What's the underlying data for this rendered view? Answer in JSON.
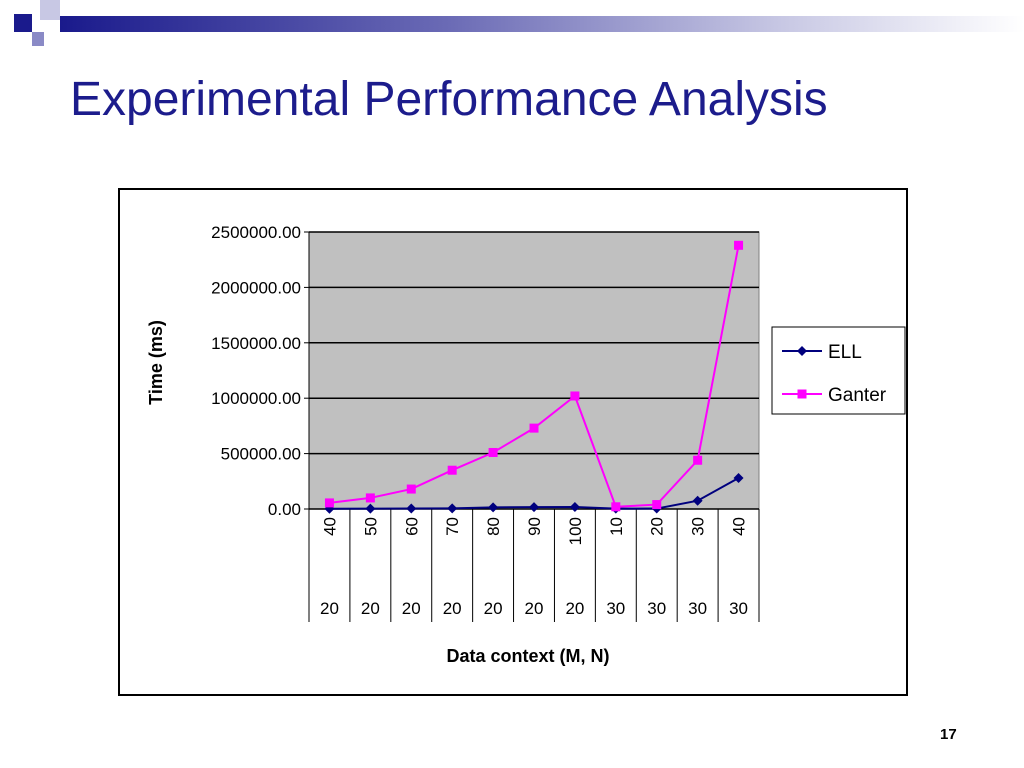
{
  "slide": {
    "title": "Experimental Performance Analysis",
    "page_number": "17"
  },
  "colors": {
    "title": "#1c1c8c",
    "deco_dark": "#1a1a8c",
    "deco_mid": "#6a6ab5",
    "deco_light": "#c8c8e4",
    "plot_bg": "#c0c0c0",
    "ell": "#00007e",
    "ganter": "#ff00ff"
  },
  "chart_data": {
    "type": "line",
    "title": "",
    "xlabel": "Data context (M, N)",
    "ylabel": "Time (ms)",
    "ylim": [
      0,
      2500000
    ],
    "y_ticks": [
      "0.00",
      "500000.00",
      "1000000.00",
      "1500000.00",
      "2000000.00",
      "2500000.00"
    ],
    "categories": [
      [
        "40",
        "20"
      ],
      [
        "50",
        "20"
      ],
      [
        "60",
        "20"
      ],
      [
        "70",
        "20"
      ],
      [
        "80",
        "20"
      ],
      [
        "90",
        "20"
      ],
      [
        "100",
        "20"
      ],
      [
        "10",
        "30"
      ],
      [
        "20",
        "30"
      ],
      [
        "30",
        "30"
      ],
      [
        "40",
        "30"
      ]
    ],
    "series": [
      {
        "name": "ELL",
        "color": "#00007e",
        "marker": "diamond",
        "values": [
          2000,
          3000,
          4000,
          6000,
          15000,
          17000,
          18000,
          3000,
          4000,
          75000,
          280000
        ]
      },
      {
        "name": "Ganter",
        "color": "#ff00ff",
        "marker": "square",
        "values": [
          55000,
          100000,
          180000,
          350000,
          510000,
          730000,
          1020000,
          20000,
          40000,
          440000,
          2380000
        ]
      }
    ],
    "grid": true,
    "legend": "right"
  }
}
